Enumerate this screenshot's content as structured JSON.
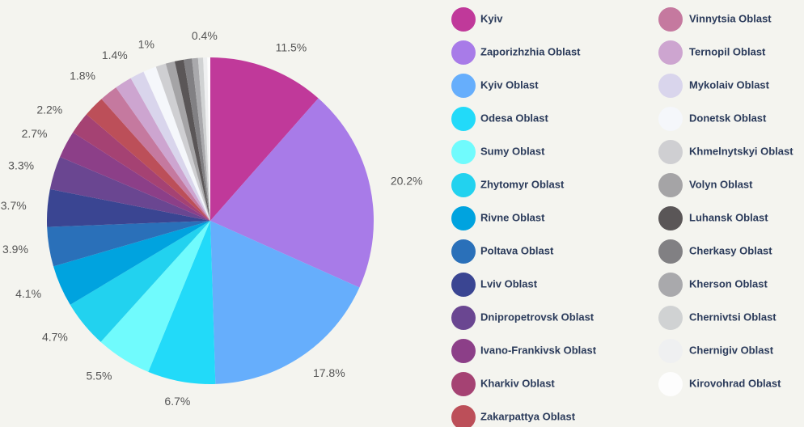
{
  "chart_data": {
    "type": "pie",
    "categories": [
      "Kyiv",
      "Zaporizhzhia Oblast",
      "Kyiv Oblast",
      "Odesa Oblast",
      "Sumy Oblast",
      "Zhytomyr Oblast",
      "Rivne Oblast",
      "Poltava Oblast",
      "Lviv Oblast",
      "Dnipropetrovsk Oblast",
      "Ivano-Frankivsk Oblast",
      "Kharkiv Oblast",
      "Zakarpattya Oblast",
      "Vinnytsia Oblast",
      "Ternopil Oblast",
      "Mykolaiv Oblast",
      "Donetsk Oblast",
      "Khmelnytskyi Oblast",
      "Volyn Oblast",
      "Luhansk Oblast",
      "Cherkasy Oblast",
      "Kherson Oblast",
      "Chernivtsi Oblast",
      "Chernigiv Oblast",
      "Kirovohrad Oblast"
    ],
    "values": [
      11.5,
      20.2,
      17.8,
      6.7,
      5.5,
      4.7,
      4.1,
      3.9,
      3.7,
      3.3,
      2.7,
      2.2,
      2.1,
      1.8,
      1.7,
      1.4,
      1.3,
      1.0,
      0.9,
      0.9,
      0.8,
      0.6,
      0.5,
      0.4,
      0.3
    ],
    "value_labels": [
      "11.5%",
      "20.2%",
      "17.8%",
      "6.7%",
      "5.5%",
      "4.7%",
      "4.1%",
      "3.9%",
      "3.7%",
      "3.3%",
      "2.7%",
      "2.2%",
      null,
      "1.8%",
      null,
      "1.4%",
      null,
      "1%",
      null,
      null,
      null,
      null,
      null,
      "0.4%",
      null
    ],
    "colors": [
      "#c0399a",
      "#a87be8",
      "#66aefc",
      "#22daf9",
      "#70fbfd",
      "#22d2ef",
      "#00a3df",
      "#2a70b9",
      "#3a4592",
      "#6a4691",
      "#8c3f88",
      "#a54273",
      "#bc4f59",
      "#c5799f",
      "#cda5d0",
      "#d9d5ec",
      "#f5f7fb",
      "#cfcfd2",
      "#a5a4a6",
      "#5a5657",
      "#818083",
      "#a9a9ac",
      "#d0d2d3",
      "#eff0f1",
      "#fdfdfd"
    ]
  }
}
